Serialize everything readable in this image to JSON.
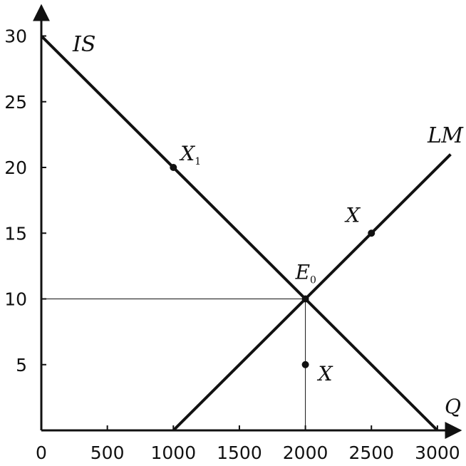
{
  "chart_data": {
    "type": "line",
    "xlabel": "Q",
    "ylabel": "",
    "xlim": [
      0,
      3200
    ],
    "ylim": [
      0,
      32
    ],
    "x_ticks": [
      "0",
      "500",
      "1000",
      "1500",
      "2000",
      "2500",
      "3000"
    ],
    "y_ticks": [
      "5",
      "10",
      "15",
      "20",
      "25",
      "30"
    ],
    "grid": false,
    "series": [
      {
        "name": "IS",
        "points": [
          [
            0,
            30
          ],
          [
            3000,
            0
          ]
        ]
      },
      {
        "name": "LM",
        "points": [
          [
            1000,
            0
          ],
          [
            3100,
            21
          ]
        ]
      }
    ],
    "points": [
      {
        "name": "X",
        "sub": "1",
        "x": 1000,
        "y": 20
      },
      {
        "name": "X",
        "sub": "",
        "x": 2500,
        "y": 15
      },
      {
        "name": "E",
        "sub": "0",
        "x": 2000,
        "y": 10
      },
      {
        "name": "X",
        "sub": "",
        "x": 2000,
        "y": 5
      }
    ],
    "guides": {
      "x": 2000,
      "y": 10
    }
  }
}
